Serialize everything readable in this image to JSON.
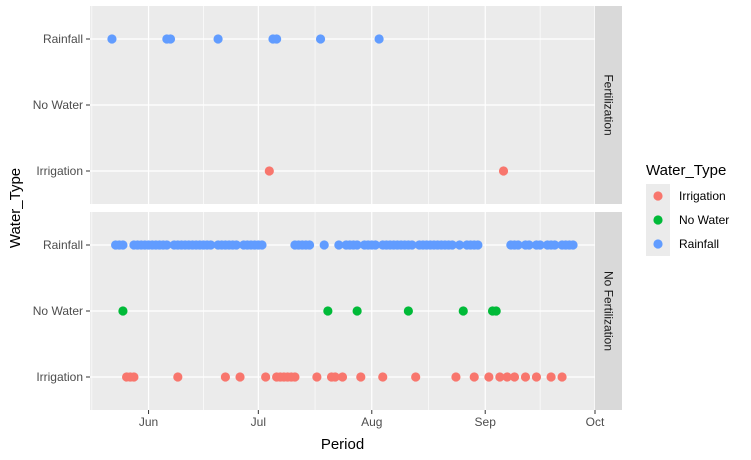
{
  "chart_data": {
    "type": "scatter",
    "xlabel": "Period",
    "ylabel": "Water_Type",
    "x_ticks": [
      "Jun",
      "Jul",
      "Aug",
      "Sep",
      "Oct"
    ],
    "x_tick_dates": [
      "2023-06-01",
      "2023-07-01",
      "2023-08-01",
      "2023-09-01",
      "2023-10-01"
    ],
    "xlim": [
      "2023-05-16",
      "2023-10-01"
    ],
    "categories": [
      "Irrigation",
      "No Water",
      "Rainfall"
    ],
    "grid": true,
    "legend": {
      "title": "Water_Type",
      "position": "right",
      "entries": [
        {
          "name": "Irrigation",
          "color": "#f8766d"
        },
        {
          "name": "No Water",
          "color": "#00ba38"
        },
        {
          "name": "Rainfall",
          "color": "#619cff"
        }
      ]
    },
    "facets": [
      {
        "label": "Fertilization",
        "series": [
          {
            "name": "Rainfall",
            "x": [
              "2023-05-22",
              "2023-06-06",
              "2023-06-07",
              "2023-06-20",
              "2023-07-05",
              "2023-07-06",
              "2023-07-18",
              "2023-08-03"
            ]
          },
          {
            "name": "No Water",
            "x": []
          },
          {
            "name": "Irrigation",
            "x": [
              "2023-07-04",
              "2023-09-06"
            ]
          }
        ]
      },
      {
        "label": "No Fertilization",
        "series": [
          {
            "name": "Rainfall",
            "x": [
              "2023-05-23",
              "2023-05-24",
              "2023-05-25",
              "2023-05-28",
              "2023-05-29",
              "2023-05-30",
              "2023-05-31",
              "2023-06-01",
              "2023-06-02",
              "2023-06-03",
              "2023-06-04",
              "2023-06-05",
              "2023-06-06",
              "2023-06-08",
              "2023-06-09",
              "2023-06-10",
              "2023-06-11",
              "2023-06-12",
              "2023-06-13",
              "2023-06-14",
              "2023-06-15",
              "2023-06-16",
              "2023-06-17",
              "2023-06-18",
              "2023-06-20",
              "2023-06-21",
              "2023-06-22",
              "2023-06-23",
              "2023-06-24",
              "2023-06-25",
              "2023-06-27",
              "2023-06-28",
              "2023-06-29",
              "2023-06-30",
              "2023-07-01",
              "2023-07-02",
              "2023-07-11",
              "2023-07-12",
              "2023-07-13",
              "2023-07-14",
              "2023-07-15",
              "2023-07-19",
              "2023-07-23",
              "2023-07-25",
              "2023-07-26",
              "2023-07-27",
              "2023-07-28",
              "2023-07-30",
              "2023-07-31",
              "2023-08-01",
              "2023-08-02",
              "2023-08-04",
              "2023-08-05",
              "2023-08-06",
              "2023-08-07",
              "2023-08-08",
              "2023-08-09",
              "2023-08-10",
              "2023-08-11",
              "2023-08-12",
              "2023-08-14",
              "2023-08-15",
              "2023-08-16",
              "2023-08-17",
              "2023-08-18",
              "2023-08-19",
              "2023-08-20",
              "2023-08-21",
              "2023-08-22",
              "2023-08-23",
              "2023-08-25",
              "2023-08-27",
              "2023-08-28",
              "2023-08-29",
              "2023-08-30",
              "2023-09-08",
              "2023-09-09",
              "2023-09-10",
              "2023-09-12",
              "2023-09-13",
              "2023-09-15",
              "2023-09-16",
              "2023-09-18",
              "2023-09-19",
              "2023-09-20",
              "2023-09-22",
              "2023-09-23",
              "2023-09-24",
              "2023-09-25"
            ]
          },
          {
            "name": "No Water",
            "x": [
              "2023-05-25",
              "2023-07-20",
              "2023-07-28",
              "2023-08-11",
              "2023-08-26",
              "2023-09-03",
              "2023-09-04"
            ]
          },
          {
            "name": "Irrigation",
            "x": [
              "2023-05-26",
              "2023-05-27",
              "2023-05-28",
              "2023-06-09",
              "2023-06-22",
              "2023-06-26",
              "2023-07-03",
              "2023-07-06",
              "2023-07-07",
              "2023-07-08",
              "2023-07-09",
              "2023-07-10",
              "2023-07-11",
              "2023-07-17",
              "2023-07-21",
              "2023-07-22",
              "2023-07-24",
              "2023-07-29",
              "2023-08-04",
              "2023-08-13",
              "2023-08-24",
              "2023-08-29",
              "2023-09-02",
              "2023-09-05",
              "2023-09-07",
              "2023-09-09",
              "2023-09-12",
              "2023-09-15",
              "2023-09-19",
              "2023-09-22"
            ]
          }
        ]
      }
    ]
  }
}
